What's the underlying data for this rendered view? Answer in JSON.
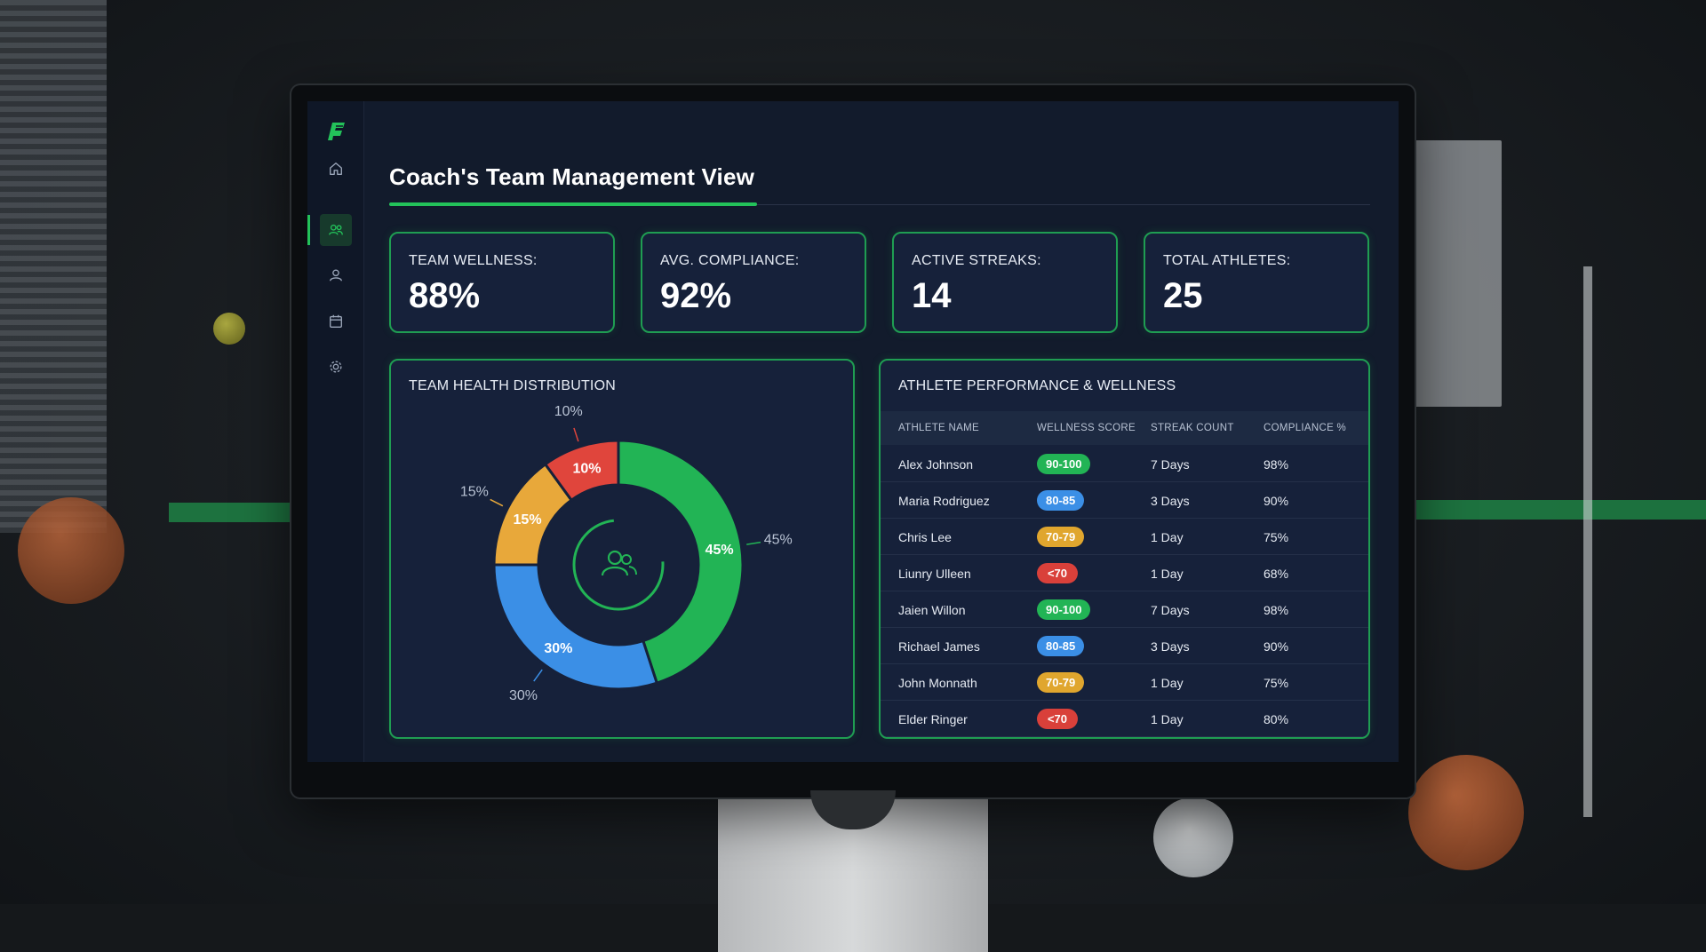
{
  "app": {
    "title": "Coach's Team Management View"
  },
  "sidebar": {
    "items": [
      {
        "icon": "home-icon",
        "active": false
      },
      {
        "icon": "team-icon",
        "active": true
      },
      {
        "icon": "user-icon",
        "active": false
      },
      {
        "icon": "calendar-icon",
        "active": false
      },
      {
        "icon": "gear-icon",
        "active": false
      }
    ]
  },
  "kpis": [
    {
      "label": "TEAM WELLNESS:",
      "value": "88%"
    },
    {
      "label": "AVG. COMPLIANCE:",
      "value": "92%"
    },
    {
      "label": "ACTIVE STREAKS:",
      "value": "14"
    },
    {
      "label": "TOTAL ATHLETES:",
      "value": "25"
    }
  ],
  "health": {
    "title": "TEAM HEALTH DISTRIBUTION"
  },
  "chart_data": {
    "type": "pie",
    "title": "TEAM HEALTH DISTRIBUTION",
    "categories": [
      "",
      "",
      "",
      ""
    ],
    "values": [
      45,
      30,
      15,
      10
    ],
    "labels": [
      "45%",
      "30%",
      "15%",
      "10%"
    ],
    "colors": [
      "#22b455",
      "#3b8fe6",
      "#e8a83a",
      "#e0453c"
    ]
  },
  "performance": {
    "title": "ATHLETE PERFORMANCE & WELLNESS",
    "columns": [
      "ATHLETE NAME",
      "WELLNESS SCORE",
      "STREAK COUNT",
      "COMPLIANCE %"
    ],
    "rows": [
      {
        "name": "Alex Johnson",
        "score": "90-100",
        "tier": "green",
        "streak": "7 Days",
        "compliance": "98%"
      },
      {
        "name": "Maria Rodriguez",
        "score": "80-85",
        "tier": "blue",
        "streak": "3 Days",
        "compliance": "90%"
      },
      {
        "name": "Chris Lee",
        "score": "70-79",
        "tier": "yellow",
        "streak": "1 Day",
        "compliance": "75%"
      },
      {
        "name": "Liunry Ulleen",
        "score": "<70",
        "tier": "red",
        "streak": "1 Day",
        "compliance": "68%"
      },
      {
        "name": "Jaien Willon",
        "score": "90-100",
        "tier": "green",
        "streak": "7 Days",
        "compliance": "98%"
      },
      {
        "name": "Richael James",
        "score": "80-85",
        "tier": "blue",
        "streak": "3 Days",
        "compliance": "90%"
      },
      {
        "name": "John Monnath",
        "score": "70-79",
        "tier": "yellow",
        "streak": "1 Day",
        "compliance": "75%"
      },
      {
        "name": "Elder Ringer",
        "score": "<70",
        "tier": "red",
        "streak": "1 Day",
        "compliance": "80%"
      }
    ]
  },
  "colors": {
    "accent": "#23c25a",
    "tier_green": "#22b455",
    "tier_blue": "#3b8fe6",
    "tier_yellow": "#e0a62e",
    "tier_red": "#d9403a"
  }
}
